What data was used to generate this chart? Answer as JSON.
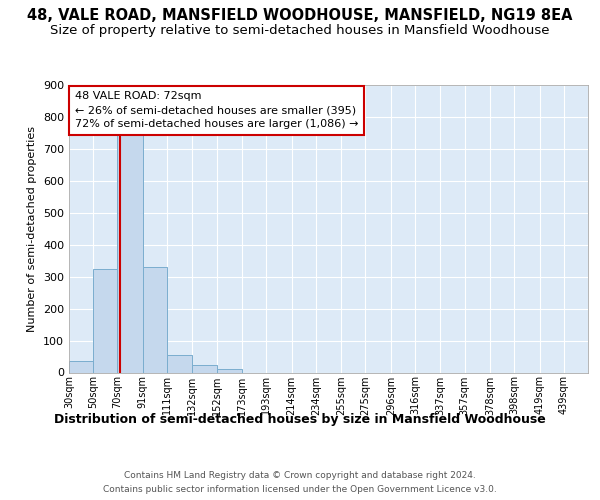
{
  "title": "48, VALE ROAD, MANSFIELD WOODHOUSE, MANSFIELD, NG19 8EA",
  "subtitle": "Size of property relative to semi-detached houses in Mansfield Woodhouse",
  "xlabel_title": "Distribution of semi-detached houses by size in Mansfield Woodhouse",
  "ylabel": "Number of semi-detached properties",
  "footer_line1": "Contains HM Land Registry data © Crown copyright and database right 2024.",
  "footer_line2": "Contains public sector information licensed under the Open Government Licence v3.0.",
  "bins": [
    30,
    50,
    70,
    91,
    111,
    132,
    152,
    173,
    193,
    214,
    234,
    255,
    275,
    296,
    316,
    337,
    357,
    378,
    398,
    419,
    439
  ],
  "values": [
    35,
    325,
    745,
    330,
    55,
    22,
    12,
    0,
    0,
    0,
    0,
    0,
    0,
    0,
    0,
    0,
    0,
    0,
    0,
    0
  ],
  "bar_color": "#c5d8ed",
  "bar_edge_color": "#7aadce",
  "property_size": 72,
  "property_line_color": "#cc0000",
  "annotation_line1": "48 VALE ROAD: 72sqm",
  "annotation_line2": "← 26% of semi-detached houses are smaller (395)",
  "annotation_line3": "72% of semi-detached houses are larger (1,086) →",
  "annotation_box_facecolor": "#ffffff",
  "annotation_box_edgecolor": "#cc0000",
  "ylim": [
    0,
    900
  ],
  "yticks": [
    0,
    100,
    200,
    300,
    400,
    500,
    600,
    700,
    800,
    900
  ],
  "background_color": "#ddeaf7",
  "title_fontsize": 10.5,
  "subtitle_fontsize": 9.5,
  "bar_linewidth": 0.7
}
